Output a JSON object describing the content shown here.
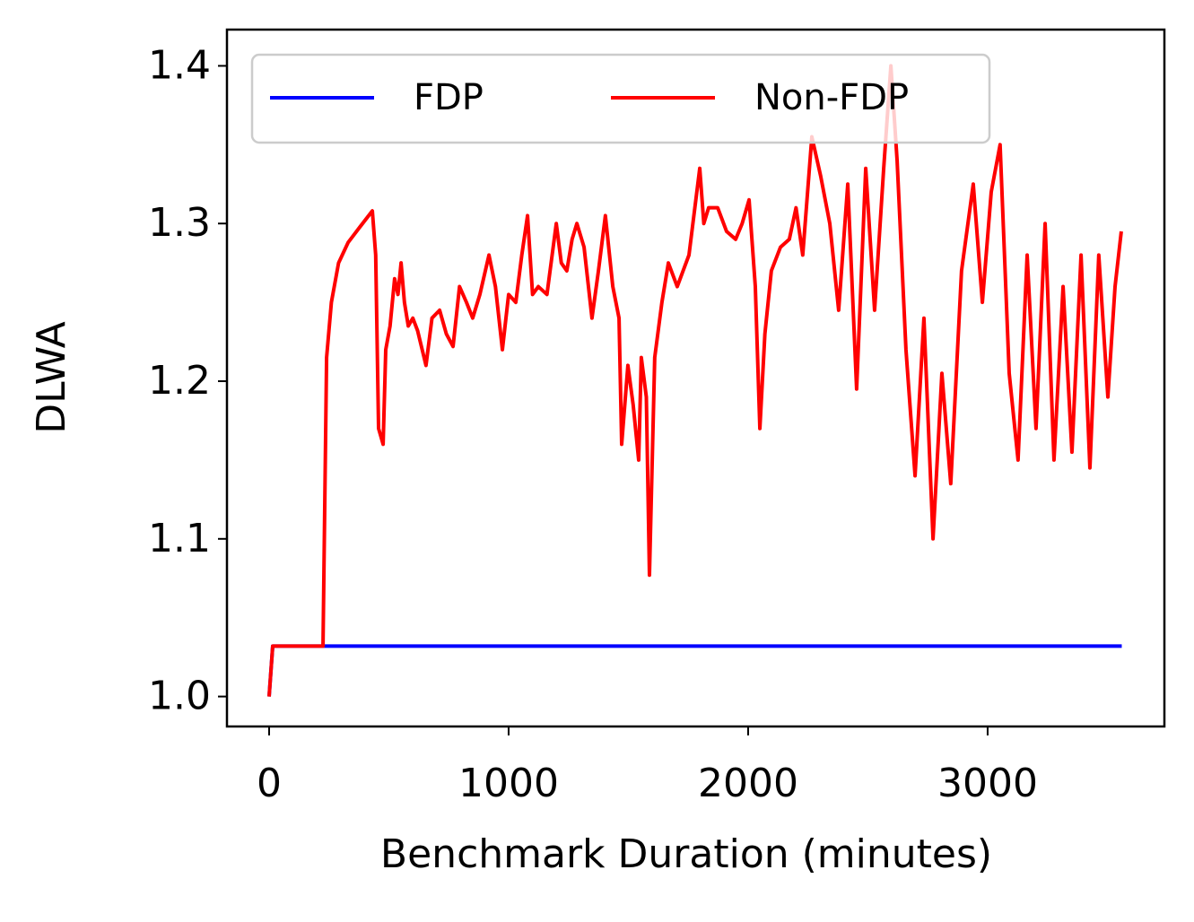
{
  "chart_data": {
    "type": "line",
    "xlabel": "Benchmark Duration (minutes)",
    "ylabel": "DLWA",
    "xlim": [
      -176,
      3738
    ],
    "ylim": [
      0.981,
      1.423
    ],
    "xticks": [
      0,
      1000,
      2000,
      3000
    ],
    "yticks": [
      {
        "value": 1,
        "label": "1.0"
      },
      1.1,
      1.2,
      1.3,
      1.4
    ],
    "legend": "upper left",
    "series": [
      {
        "name": "FDP",
        "color": "#0000ff",
        "x": [
          0,
          15,
          3560
        ],
        "values": [
          1.0,
          1.032,
          1.032
        ]
      },
      {
        "name": "Non-FDP",
        "color": "#ff0000",
        "x": [
          0,
          15,
          225,
          240,
          260,
          290,
          330,
          380,
          431,
          445,
          457,
          476,
          487,
          505,
          524,
          538,
          551,
          565,
          581,
          600,
          620,
          655,
          680,
          712,
          740,
          768,
          795,
          824,
          850,
          880,
          918,
          945,
          974,
          1000,
          1030,
          1055,
          1079,
          1100,
          1124,
          1160,
          1199,
          1220,
          1243,
          1265,
          1285,
          1315,
          1348,
          1375,
          1404,
          1435,
          1461,
          1472,
          1498,
          1520,
          1543,
          1554,
          1575,
          1588,
          1610,
          1640,
          1667,
          1704,
          1753,
          1798,
          1815,
          1835,
          1873,
          1910,
          1948,
          1975,
          2004,
          2030,
          2049,
          2070,
          2097,
          2135,
          2172,
          2200,
          2228,
          2266,
          2303,
          2341,
          2378,
          2416,
          2453,
          2491,
          2528,
          2566,
          2596,
          2622,
          2659,
          2697,
          2734,
          2772,
          2809,
          2846,
          2891,
          2940,
          2978,
          3015,
          3052,
          3090,
          3127,
          3165,
          3202,
          3240,
          3277,
          3315,
          3352,
          3390,
          3427,
          3464,
          3502,
          3532,
          3558
        ],
        "values": [
          1.0,
          1.032,
          1.032,
          1.215,
          1.25,
          1.275,
          1.288,
          1.298,
          1.308,
          1.28,
          1.17,
          1.16,
          1.22,
          1.235,
          1.265,
          1.255,
          1.275,
          1.25,
          1.235,
          1.24,
          1.232,
          1.21,
          1.24,
          1.245,
          1.23,
          1.222,
          1.26,
          1.25,
          1.24,
          1.255,
          1.28,
          1.26,
          1.22,
          1.255,
          1.25,
          1.28,
          1.305,
          1.255,
          1.26,
          1.255,
          1.3,
          1.275,
          1.27,
          1.29,
          1.3,
          1.285,
          1.24,
          1.27,
          1.305,
          1.26,
          1.24,
          1.16,
          1.21,
          1.185,
          1.15,
          1.215,
          1.19,
          1.077,
          1.215,
          1.25,
          1.275,
          1.26,
          1.28,
          1.335,
          1.3,
          1.31,
          1.31,
          1.295,
          1.29,
          1.3,
          1.315,
          1.26,
          1.17,
          1.23,
          1.27,
          1.285,
          1.29,
          1.31,
          1.28,
          1.355,
          1.33,
          1.3,
          1.245,
          1.325,
          1.195,
          1.335,
          1.245,
          1.335,
          1.4,
          1.34,
          1.22,
          1.14,
          1.24,
          1.1,
          1.205,
          1.135,
          1.27,
          1.325,
          1.25,
          1.32,
          1.35,
          1.205,
          1.15,
          1.28,
          1.17,
          1.3,
          1.15,
          1.26,
          1.155,
          1.28,
          1.145,
          1.28,
          1.19,
          1.26,
          1.295
        ]
      }
    ]
  }
}
